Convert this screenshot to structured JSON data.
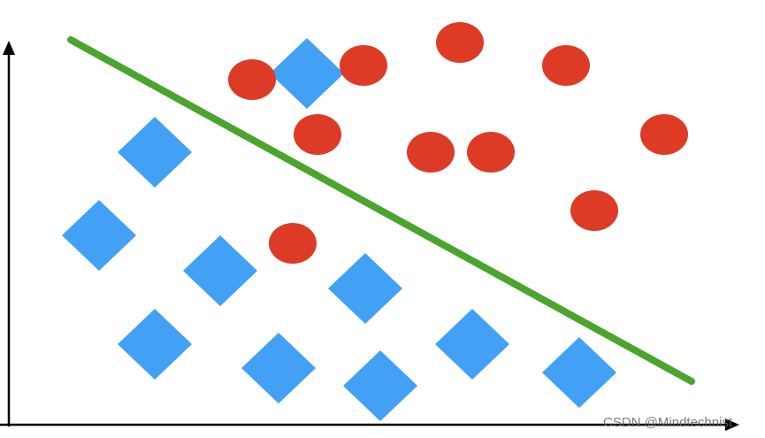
{
  "diagram": {
    "type": "two-class scatter with linear separating line",
    "colors": {
      "class_circle": "#dd3b26",
      "class_diamond": "#42a1f5",
      "separator": "#4aa52c",
      "axes": "#000000"
    },
    "class_circle_count": 10,
    "class_diamond_count": 10
  },
  "watermark": "CSDN @Mindtechnist"
}
